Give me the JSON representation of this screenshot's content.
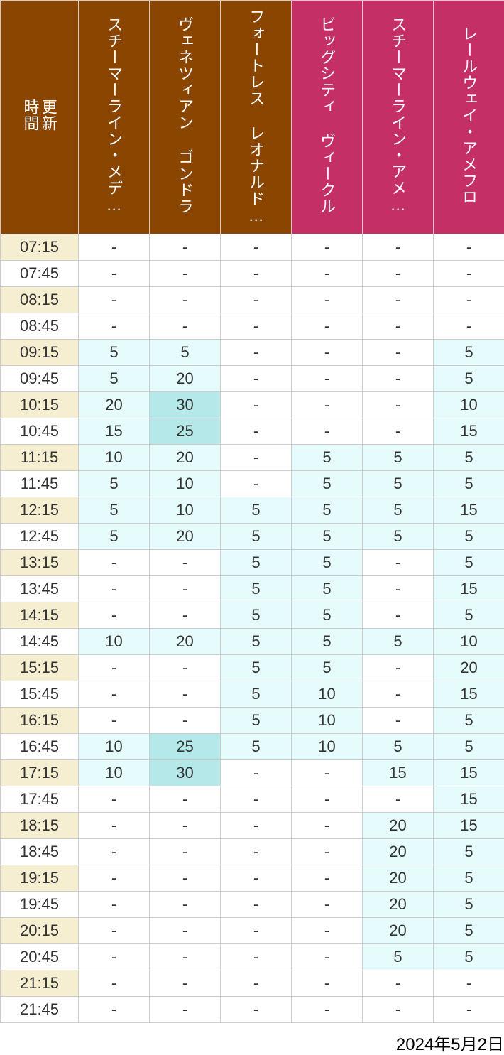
{
  "footer_date": "2024年5月2日",
  "columns": [
    {
      "label": "更新\n時間",
      "header_bg": "#8a4500",
      "group": "time"
    },
    {
      "label": "スチーマーライン・メデ…",
      "header_bg": "#8a4500",
      "group": "a"
    },
    {
      "label": "ヴェネツィアン ゴンドラ",
      "header_bg": "#8a4500",
      "group": "a"
    },
    {
      "label": "フォートレス レオナルド…",
      "header_bg": "#8a4500",
      "group": "a"
    },
    {
      "label": "ビッグシティ ヴィークル",
      "header_bg": "#c43066",
      "group": "b"
    },
    {
      "label": "スチーマーライン・アメ…",
      "header_bg": "#c43066",
      "group": "b"
    },
    {
      "label": "レールウェイ・アメフロ",
      "header_bg": "#c43066",
      "group": "b"
    }
  ],
  "thresholds": {
    "tier1_max": 20,
    "tier2_max": 40
  },
  "cell_colors": {
    "tier1": "#e6fbfb",
    "tier2": "#b5e8e8",
    "blank": "#ffffff"
  },
  "time_col_colors": {
    "even": "#f5eed1",
    "odd": "#ffffff"
  },
  "text_color": "#333333",
  "rows": [
    {
      "time": "07:15",
      "v": [
        null,
        null,
        null,
        null,
        null,
        null
      ]
    },
    {
      "time": "07:45",
      "v": [
        null,
        null,
        null,
        null,
        null,
        null
      ]
    },
    {
      "time": "08:15",
      "v": [
        null,
        null,
        null,
        null,
        null,
        null
      ]
    },
    {
      "time": "08:45",
      "v": [
        null,
        null,
        null,
        null,
        null,
        null
      ]
    },
    {
      "time": "09:15",
      "v": [
        5,
        5,
        null,
        null,
        null,
        5
      ]
    },
    {
      "time": "09:45",
      "v": [
        5,
        20,
        null,
        null,
        null,
        5
      ]
    },
    {
      "time": "10:15",
      "v": [
        20,
        30,
        null,
        null,
        null,
        10
      ]
    },
    {
      "time": "10:45",
      "v": [
        15,
        25,
        null,
        null,
        null,
        15
      ]
    },
    {
      "time": "11:15",
      "v": [
        10,
        20,
        null,
        5,
        5,
        5
      ]
    },
    {
      "time": "11:45",
      "v": [
        5,
        10,
        null,
        5,
        5,
        5
      ]
    },
    {
      "time": "12:15",
      "v": [
        5,
        10,
        5,
        5,
        5,
        15
      ]
    },
    {
      "time": "12:45",
      "v": [
        5,
        20,
        5,
        5,
        5,
        5
      ]
    },
    {
      "time": "13:15",
      "v": [
        null,
        null,
        5,
        5,
        null,
        5
      ]
    },
    {
      "time": "13:45",
      "v": [
        null,
        null,
        5,
        5,
        null,
        15
      ]
    },
    {
      "time": "14:15",
      "v": [
        null,
        null,
        5,
        5,
        null,
        5
      ]
    },
    {
      "time": "14:45",
      "v": [
        10,
        20,
        5,
        5,
        5,
        10
      ]
    },
    {
      "time": "15:15",
      "v": [
        null,
        null,
        5,
        5,
        null,
        20
      ]
    },
    {
      "time": "15:45",
      "v": [
        null,
        null,
        5,
        10,
        null,
        15
      ]
    },
    {
      "time": "16:15",
      "v": [
        null,
        null,
        5,
        10,
        null,
        5
      ]
    },
    {
      "time": "16:45",
      "v": [
        10,
        25,
        5,
        10,
        5,
        5
      ]
    },
    {
      "time": "17:15",
      "v": [
        10,
        30,
        null,
        null,
        15,
        15
      ]
    },
    {
      "time": "17:45",
      "v": [
        null,
        null,
        null,
        null,
        null,
        15
      ]
    },
    {
      "time": "18:15",
      "v": [
        null,
        null,
        null,
        null,
        20,
        15
      ]
    },
    {
      "time": "18:45",
      "v": [
        null,
        null,
        null,
        null,
        20,
        5
      ]
    },
    {
      "time": "19:15",
      "v": [
        null,
        null,
        null,
        null,
        20,
        5
      ]
    },
    {
      "time": "19:45",
      "v": [
        null,
        null,
        null,
        null,
        20,
        5
      ]
    },
    {
      "time": "20:15",
      "v": [
        null,
        null,
        null,
        null,
        20,
        5
      ]
    },
    {
      "time": "20:45",
      "v": [
        null,
        null,
        null,
        null,
        5,
        5
      ]
    },
    {
      "time": "21:15",
      "v": [
        null,
        null,
        null,
        null,
        null,
        null
      ]
    },
    {
      "time": "21:45",
      "v": [
        null,
        null,
        null,
        null,
        null,
        null
      ]
    }
  ]
}
